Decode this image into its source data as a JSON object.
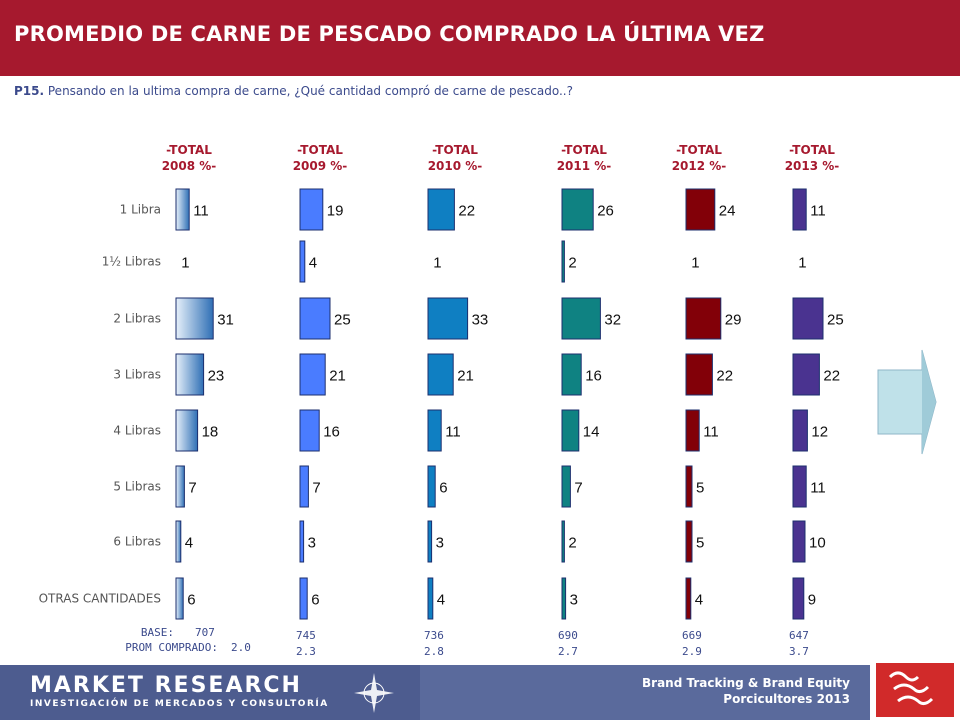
{
  "header": {
    "title": "PROMEDIO DE CARNE DE PESCADO COMPRADO LA ÚLTIMA VEZ"
  },
  "question": {
    "code": "P15.",
    "text": " Pensando en la ultima compra de carne, ¿Qué cantidad compró de carne de pescado..?"
  },
  "chart_data": {
    "type": "bar",
    "orientation": "horizontal",
    "categories": [
      "1 Libra",
      "1½ Libras",
      "2 Libras",
      "3 Libras",
      "4 Libras",
      "5 Libras",
      "6 Libras",
      "OTRAS CANTIDADES"
    ],
    "series": [
      {
        "name": "-TOTAL 2008 %-",
        "values": [
          11,
          1,
          31,
          23,
          18,
          7,
          4,
          6
        ],
        "color": "#9dbedd",
        "base": "707",
        "prom": "2.0"
      },
      {
        "name": "-TOTAL 2009 %-",
        "values": [
          19,
          4,
          25,
          21,
          16,
          7,
          3,
          6
        ],
        "color": "#4a7cff",
        "base": "745",
        "prom": "2.3"
      },
      {
        "name": "-TOTAL 2010 %-",
        "values": [
          22,
          1,
          33,
          21,
          11,
          6,
          3,
          4
        ],
        "color": "#0f7fc2",
        "base": "736",
        "prom": "2.8"
      },
      {
        "name": "-TOTAL 2011 %-",
        "values": [
          26,
          2,
          32,
          16,
          14,
          7,
          2,
          3
        ],
        "color": "#0f8282",
        "base": "690",
        "prom": "2.7"
      },
      {
        "name": "-TOTAL 2012 %-",
        "values": [
          24,
          1,
          29,
          22,
          11,
          5,
          5,
          4
        ],
        "color": "#820008",
        "base": "669",
        "prom": "2.9"
      },
      {
        "name": "-TOTAL 2013 %-",
        "values": [
          11,
          1,
          25,
          22,
          12,
          11,
          10,
          9
        ],
        "color": "#4a3390",
        "base": "647",
        "prom": "3.7"
      }
    ],
    "base_label": "BASE:",
    "prom_label": "PROM COMPRADO:"
  },
  "footer": {
    "brand_title": "MARKET RESEARCH",
    "brand_subtitle": "INVESTIGACIÓN DE MERCADOS Y CONSULTORÍA",
    "right_line1": "Brand Tracking & Brand Equity",
    "right_line2": "Porcicultores 2013"
  },
  "colors": {
    "header_bg": "#a6192e",
    "footer_bg": "#5a6a9c"
  }
}
